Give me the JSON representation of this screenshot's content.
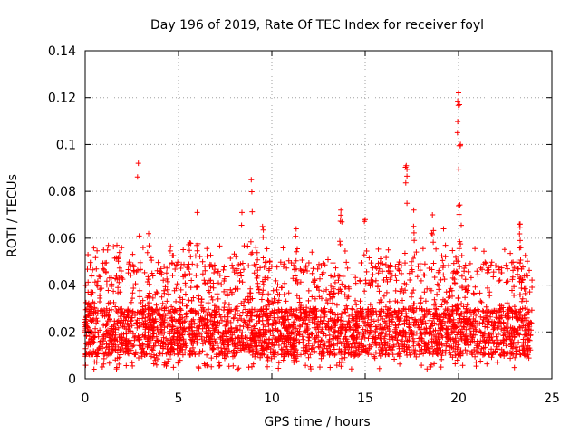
{
  "chart_data": {
    "type": "scatter",
    "title": "Day 196 of 2019, Rate Of TEC Index for receiver foyl",
    "xlabel": "GPS time / hours",
    "ylabel": "ROTI / TECUs",
    "xlim": [
      0,
      25
    ],
    "ylim": [
      0,
      0.14
    ],
    "xticks": [
      0,
      5,
      10,
      15,
      20,
      25
    ],
    "xtick_labels": [
      "0",
      "5",
      "10",
      "15",
      "20",
      "25"
    ],
    "yticks": [
      0,
      0.02,
      0.04,
      0.06,
      0.08,
      0.1,
      0.12,
      0.14
    ],
    "ytick_labels": [
      "0",
      "0.02",
      "0.04",
      "0.06",
      "0.08",
      "0.1",
      "0.12",
      "0.14"
    ],
    "grid": true,
    "marker": "+",
    "color": "#ff0000",
    "x_data_range": [
      0,
      23.95
    ],
    "dense_band": [
      0.01,
      0.03
    ],
    "peaks": [
      {
        "x": 0.15,
        "y": 0.053
      },
      {
        "x": 1.7,
        "y": 0.057
      },
      {
        "x": 2.85,
        "y": 0.092
      },
      {
        "x": 3.4,
        "y": 0.062
      },
      {
        "x": 5.6,
        "y": 0.058
      },
      {
        "x": 6.0,
        "y": 0.071
      },
      {
        "x": 8.4,
        "y": 0.071
      },
      {
        "x": 8.9,
        "y": 0.085
      },
      {
        "x": 9.5,
        "y": 0.065
      },
      {
        "x": 11.3,
        "y": 0.064
      },
      {
        "x": 13.7,
        "y": 0.072
      },
      {
        "x": 15.0,
        "y": 0.068
      },
      {
        "x": 17.2,
        "y": 0.091
      },
      {
        "x": 17.6,
        "y": 0.072
      },
      {
        "x": 18.6,
        "y": 0.07
      },
      {
        "x": 19.2,
        "y": 0.064
      },
      {
        "x": 20.0,
        "y": 0.122
      },
      {
        "x": 20.05,
        "y": 0.117
      },
      {
        "x": 20.1,
        "y": 0.1
      },
      {
        "x": 23.3,
        "y": 0.066
      },
      {
        "x": 23.3,
        "y": 0.059
      }
    ]
  }
}
